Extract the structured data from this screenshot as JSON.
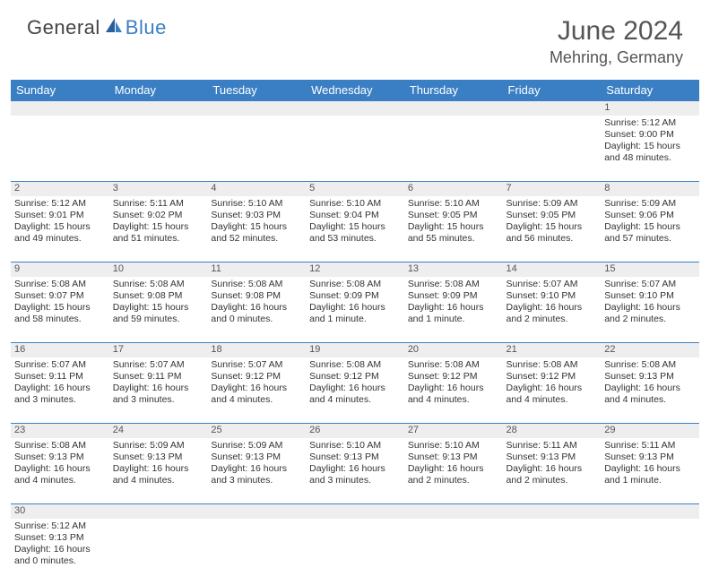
{
  "logo": {
    "general": "General",
    "blue": "Blue"
  },
  "header": {
    "title": "June 2024",
    "location": "Mehring, Germany"
  },
  "colors": {
    "accent": "#3a7fc4",
    "daynum_bg": "#eeeeee",
    "text": "#333333"
  },
  "weekdays": [
    "Sunday",
    "Monday",
    "Tuesday",
    "Wednesday",
    "Thursday",
    "Friday",
    "Saturday"
  ],
  "weeks": [
    [
      null,
      null,
      null,
      null,
      null,
      null,
      {
        "d": "1",
        "sr": "Sunrise: 5:12 AM",
        "ss": "Sunset: 9:00 PM",
        "dl1": "Daylight: 15 hours",
        "dl2": "and 48 minutes."
      }
    ],
    [
      {
        "d": "2",
        "sr": "Sunrise: 5:12 AM",
        "ss": "Sunset: 9:01 PM",
        "dl1": "Daylight: 15 hours",
        "dl2": "and 49 minutes."
      },
      {
        "d": "3",
        "sr": "Sunrise: 5:11 AM",
        "ss": "Sunset: 9:02 PM",
        "dl1": "Daylight: 15 hours",
        "dl2": "and 51 minutes."
      },
      {
        "d": "4",
        "sr": "Sunrise: 5:10 AM",
        "ss": "Sunset: 9:03 PM",
        "dl1": "Daylight: 15 hours",
        "dl2": "and 52 minutes."
      },
      {
        "d": "5",
        "sr": "Sunrise: 5:10 AM",
        "ss": "Sunset: 9:04 PM",
        "dl1": "Daylight: 15 hours",
        "dl2": "and 53 minutes."
      },
      {
        "d": "6",
        "sr": "Sunrise: 5:10 AM",
        "ss": "Sunset: 9:05 PM",
        "dl1": "Daylight: 15 hours",
        "dl2": "and 55 minutes."
      },
      {
        "d": "7",
        "sr": "Sunrise: 5:09 AM",
        "ss": "Sunset: 9:05 PM",
        "dl1": "Daylight: 15 hours",
        "dl2": "and 56 minutes."
      },
      {
        "d": "8",
        "sr": "Sunrise: 5:09 AM",
        "ss": "Sunset: 9:06 PM",
        "dl1": "Daylight: 15 hours",
        "dl2": "and 57 minutes."
      }
    ],
    [
      {
        "d": "9",
        "sr": "Sunrise: 5:08 AM",
        "ss": "Sunset: 9:07 PM",
        "dl1": "Daylight: 15 hours",
        "dl2": "and 58 minutes."
      },
      {
        "d": "10",
        "sr": "Sunrise: 5:08 AM",
        "ss": "Sunset: 9:08 PM",
        "dl1": "Daylight: 15 hours",
        "dl2": "and 59 minutes."
      },
      {
        "d": "11",
        "sr": "Sunrise: 5:08 AM",
        "ss": "Sunset: 9:08 PM",
        "dl1": "Daylight: 16 hours",
        "dl2": "and 0 minutes."
      },
      {
        "d": "12",
        "sr": "Sunrise: 5:08 AM",
        "ss": "Sunset: 9:09 PM",
        "dl1": "Daylight: 16 hours",
        "dl2": "and 1 minute."
      },
      {
        "d": "13",
        "sr": "Sunrise: 5:08 AM",
        "ss": "Sunset: 9:09 PM",
        "dl1": "Daylight: 16 hours",
        "dl2": "and 1 minute."
      },
      {
        "d": "14",
        "sr": "Sunrise: 5:07 AM",
        "ss": "Sunset: 9:10 PM",
        "dl1": "Daylight: 16 hours",
        "dl2": "and 2 minutes."
      },
      {
        "d": "15",
        "sr": "Sunrise: 5:07 AM",
        "ss": "Sunset: 9:10 PM",
        "dl1": "Daylight: 16 hours",
        "dl2": "and 2 minutes."
      }
    ],
    [
      {
        "d": "16",
        "sr": "Sunrise: 5:07 AM",
        "ss": "Sunset: 9:11 PM",
        "dl1": "Daylight: 16 hours",
        "dl2": "and 3 minutes."
      },
      {
        "d": "17",
        "sr": "Sunrise: 5:07 AM",
        "ss": "Sunset: 9:11 PM",
        "dl1": "Daylight: 16 hours",
        "dl2": "and 3 minutes."
      },
      {
        "d": "18",
        "sr": "Sunrise: 5:07 AM",
        "ss": "Sunset: 9:12 PM",
        "dl1": "Daylight: 16 hours",
        "dl2": "and 4 minutes."
      },
      {
        "d": "19",
        "sr": "Sunrise: 5:08 AM",
        "ss": "Sunset: 9:12 PM",
        "dl1": "Daylight: 16 hours",
        "dl2": "and 4 minutes."
      },
      {
        "d": "20",
        "sr": "Sunrise: 5:08 AM",
        "ss": "Sunset: 9:12 PM",
        "dl1": "Daylight: 16 hours",
        "dl2": "and 4 minutes."
      },
      {
        "d": "21",
        "sr": "Sunrise: 5:08 AM",
        "ss": "Sunset: 9:12 PM",
        "dl1": "Daylight: 16 hours",
        "dl2": "and 4 minutes."
      },
      {
        "d": "22",
        "sr": "Sunrise: 5:08 AM",
        "ss": "Sunset: 9:13 PM",
        "dl1": "Daylight: 16 hours",
        "dl2": "and 4 minutes."
      }
    ],
    [
      {
        "d": "23",
        "sr": "Sunrise: 5:08 AM",
        "ss": "Sunset: 9:13 PM",
        "dl1": "Daylight: 16 hours",
        "dl2": "and 4 minutes."
      },
      {
        "d": "24",
        "sr": "Sunrise: 5:09 AM",
        "ss": "Sunset: 9:13 PM",
        "dl1": "Daylight: 16 hours",
        "dl2": "and 4 minutes."
      },
      {
        "d": "25",
        "sr": "Sunrise: 5:09 AM",
        "ss": "Sunset: 9:13 PM",
        "dl1": "Daylight: 16 hours",
        "dl2": "and 3 minutes."
      },
      {
        "d": "26",
        "sr": "Sunrise: 5:10 AM",
        "ss": "Sunset: 9:13 PM",
        "dl1": "Daylight: 16 hours",
        "dl2": "and 3 minutes."
      },
      {
        "d": "27",
        "sr": "Sunrise: 5:10 AM",
        "ss": "Sunset: 9:13 PM",
        "dl1": "Daylight: 16 hours",
        "dl2": "and 2 minutes."
      },
      {
        "d": "28",
        "sr": "Sunrise: 5:11 AM",
        "ss": "Sunset: 9:13 PM",
        "dl1": "Daylight: 16 hours",
        "dl2": "and 2 minutes."
      },
      {
        "d": "29",
        "sr": "Sunrise: 5:11 AM",
        "ss": "Sunset: 9:13 PM",
        "dl1": "Daylight: 16 hours",
        "dl2": "and 1 minute."
      }
    ],
    [
      {
        "d": "30",
        "sr": "Sunrise: 5:12 AM",
        "ss": "Sunset: 9:13 PM",
        "dl1": "Daylight: 16 hours",
        "dl2": "and 0 minutes."
      },
      null,
      null,
      null,
      null,
      null,
      null
    ]
  ]
}
